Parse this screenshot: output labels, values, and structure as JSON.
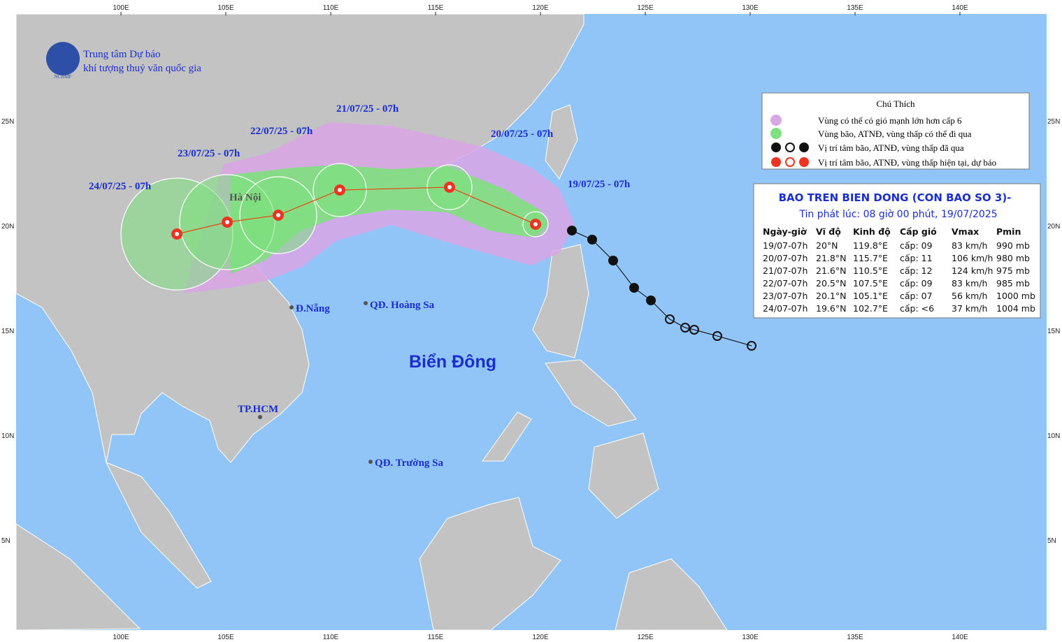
{
  "header": {
    "org_line1": "Trung tâm Dự báo",
    "org_line2": "khí tượng thuỷ văn quốc gia",
    "logo": "NCHMF"
  },
  "grid": {
    "lon_labels": [
      "100E",
      "105E",
      "110E",
      "115E",
      "120E",
      "125E",
      "130E",
      "135E",
      "140E"
    ],
    "lat_labels": [
      "25N",
      "20N",
      "15N",
      "10N",
      "5N"
    ]
  },
  "track_labels": [
    "19/07/25 - 07h",
    "20/07/25 - 07h",
    "21/07/25 - 07h",
    "22/07/25 - 07h",
    "23/07/25 - 07h",
    "24/07/25 - 07h"
  ],
  "places": {
    "hanoi": "Hà Nội",
    "danang": "Đ.Nẵng",
    "hoangsa": "QĐ. Hoàng Sa",
    "hcm": "TP.HCM",
    "truongsa": "QĐ. Trường Sa",
    "sea": "Biển Đông"
  },
  "legend": {
    "title": "Chú Thích",
    "items": [
      "Vùng có thể có gió mạnh lớn hơn cấp 6",
      "Vùng bão, ATNĐ, vùng thấp có thể đi qua",
      "Vị trí tâm bão, ATNĐ, vùng thấp đã qua",
      "Vị trí tâm bão, ATNĐ, vùng thấp hiện tại, dự báo"
    ]
  },
  "table": {
    "title": "BAO TREN BIEN DONG (CON BAO SO 3)-",
    "subtitle": "Tin phát lúc: 08 giờ 00 phút, 19/07/2025",
    "headers": [
      "Ngày-giờ",
      "Vĩ độ",
      "Kinh độ",
      "Cấp gió",
      "Vmax",
      "Pmin"
    ],
    "rows": [
      [
        "19/07-07h",
        "20°N",
        "119.8°E",
        "cấp: 09",
        "83 km/h",
        "990 mb"
      ],
      [
        "20/07-07h",
        "21.8°N",
        "115.7°E",
        "cấp: 11",
        "106 km/h",
        "980 mb"
      ],
      [
        "21/07-07h",
        "21.6°N",
        "110.5°E",
        "cấp: 12",
        "124 km/h",
        "975 mb"
      ],
      [
        "22/07-07h",
        "20.5°N",
        "107.5°E",
        "cấp: 09",
        "83 km/h",
        "985 mb"
      ],
      [
        "23/07-07h",
        "20.1°N",
        "105.1°E",
        "cấp: 07",
        "56 km/h",
        "1000 mb"
      ],
      [
        "24/07-07h",
        "19.6°N",
        "102.7°E",
        "cấp: <6",
        "37 km/h",
        "1004 mb"
      ]
    ]
  }
}
